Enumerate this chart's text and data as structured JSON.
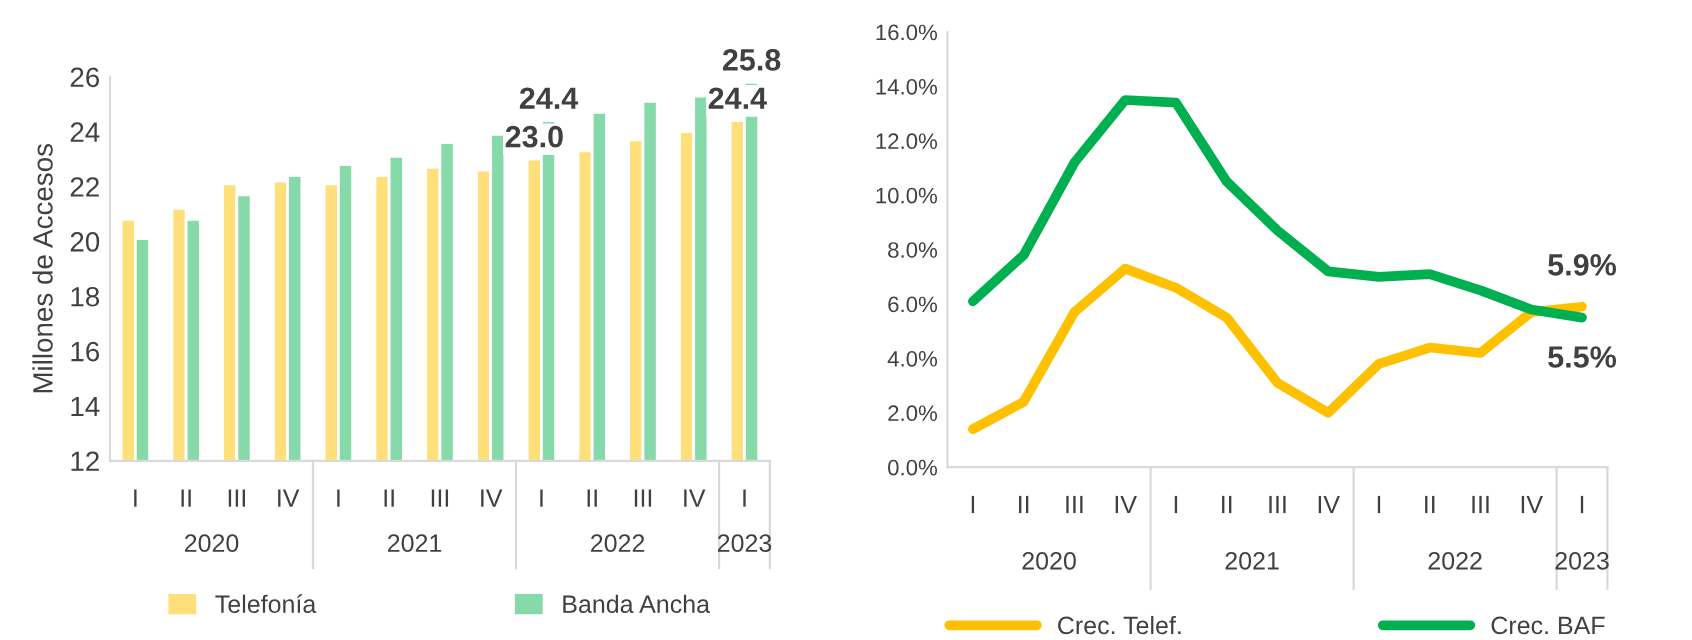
{
  "chart_data": [
    {
      "type": "bar",
      "ylabel": "Millones de Accesos",
      "categories": [
        "I",
        "II",
        "III",
        "IV",
        "I",
        "II",
        "III",
        "IV",
        "I",
        "II",
        "III",
        "IV",
        "I"
      ],
      "series": [
        {
          "name": "Telefonía",
          "color": "#ffdf7a",
          "values": [
            20.8,
            21.2,
            22.1,
            22.2,
            22.1,
            22.4,
            22.7,
            22.6,
            23.0,
            23.3,
            23.7,
            24.0,
            24.4
          ],
          "value_labels": [
            null,
            null,
            null,
            null,
            null,
            null,
            null,
            null,
            "23.0",
            null,
            null,
            null,
            "24.4"
          ]
        },
        {
          "name": "Banda Ancha",
          "color": "#86d9a8",
          "values": [
            20.1,
            20.8,
            21.7,
            22.4,
            22.8,
            23.1,
            23.6,
            23.9,
            24.4,
            24.7,
            25.1,
            25.3,
            25.8
          ],
          "value_labels": [
            null,
            null,
            null,
            null,
            null,
            null,
            null,
            null,
            "24.4",
            null,
            null,
            null,
            "25.8"
          ]
        }
      ],
      "ylim": [
        12,
        26
      ],
      "yticks": [
        12,
        14,
        16,
        18,
        20,
        22,
        24,
        26
      ],
      "grid": false,
      "legend": "bottom",
      "annotations": [
        "2020",
        "2021",
        "2022",
        "2023"
      ]
    },
    {
      "type": "line",
      "categories": [
        "I",
        "II",
        "III",
        "IV",
        "I",
        "II",
        "III",
        "IV",
        "I",
        "II",
        "III",
        "IV",
        "I"
      ],
      "series": [
        {
          "name": "Crec. Telef.",
          "color": "#ffc000",
          "values": [
            1.4,
            2.4,
            5.7,
            7.3,
            6.6,
            5.5,
            3.1,
            2.0,
            3.8,
            4.4,
            4.2,
            5.7,
            5.9
          ],
          "value_labels": [
            null,
            null,
            null,
            null,
            null,
            null,
            null,
            null,
            null,
            null,
            null,
            null,
            "5.9%"
          ]
        },
        {
          "name": "Crec. BAF",
          "color": "#00b050",
          "values": [
            6.1,
            7.8,
            11.2,
            13.5,
            13.4,
            10.5,
            8.7,
            7.2,
            7.0,
            7.1,
            6.5,
            5.8,
            5.5
          ],
          "value_labels": [
            null,
            null,
            null,
            null,
            null,
            null,
            null,
            null,
            null,
            null,
            null,
            null,
            "5.5%"
          ]
        }
      ],
      "ylim": [
        0,
        16
      ],
      "yticks": [
        {
          "value": 0,
          "label": "0.0%"
        },
        {
          "value": 2,
          "label": "2.0%"
        },
        {
          "value": 4,
          "label": "4.0%"
        },
        {
          "value": 6,
          "label": "6.0%"
        },
        {
          "value": 8,
          "label": "8.0%"
        },
        {
          "value": 10,
          "label": "10.0%"
        },
        {
          "value": 12,
          "label": "12.0%"
        },
        {
          "value": 14,
          "label": "14.0%"
        },
        {
          "value": 16,
          "label": "16.0%"
        }
      ],
      "grid": false,
      "legend": "bottom",
      "marker": "none",
      "line_style": "solid",
      "annotations": [
        "2020",
        "2021",
        "2022",
        "2023"
      ]
    }
  ]
}
